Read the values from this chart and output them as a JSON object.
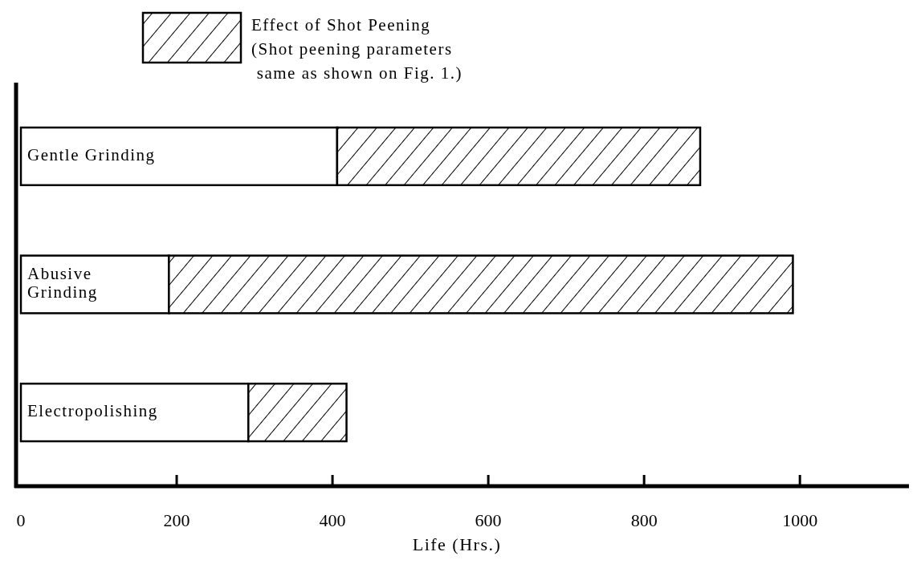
{
  "chart_data": {
    "type": "bar",
    "orientation": "horizontal",
    "stacked": true,
    "xlabel": "Life (Hrs.)",
    "categories": [
      "Gentle Grinding",
      "Abusive\nGrinding",
      "Electropolishing"
    ],
    "series": [
      {
        "color": "#ffffff",
        "values": [
          406,
          190,
          292
        ]
      },
      {
        "name": "Effect of Shot Peening\n(Shot peening parameters\n same as shown on Fig. 1.)",
        "color": "#000000",
        "values": [
          466,
          801,
          126
        ]
      }
    ],
    "xlim": [
      0,
      1140
    ],
    "xticks": [
      0,
      200,
      400,
      600,
      800,
      1000
    ],
    "legend": "top",
    "grid": false
  }
}
